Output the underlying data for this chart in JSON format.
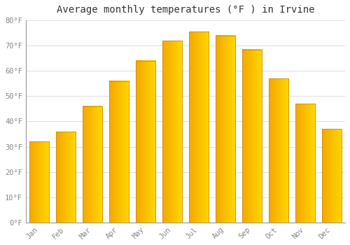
{
  "title": "Average monthly temperatures (°F ) in Irvine",
  "months": [
    "Jan",
    "Feb",
    "Mar",
    "Apr",
    "May",
    "Jun",
    "Jul",
    "Aug",
    "Sep",
    "Oct",
    "Nov",
    "Dec"
  ],
  "temperatures": [
    32,
    36,
    46,
    56,
    64,
    72,
    75.5,
    74,
    68.5,
    57,
    47,
    37
  ],
  "bar_color_left": "#F5A800",
  "bar_color_right": "#FFD000",
  "bar_outline_color": "#B8860B",
  "background_color": "#FFFFFF",
  "plot_bg_color": "#FFFFFF",
  "grid_color": "#DDDDDD",
  "text_color": "#888888",
  "title_color": "#333333",
  "ylim": [
    0,
    80
  ],
  "yticks": [
    0,
    10,
    20,
    30,
    40,
    50,
    60,
    70,
    80
  ],
  "ytick_labels": [
    "0°F",
    "10°F",
    "20°F",
    "30°F",
    "40°F",
    "50°F",
    "60°F",
    "70°F",
    "80°F"
  ],
  "title_fontsize": 10,
  "tick_fontsize": 7.5,
  "font_family": "monospace",
  "bar_width": 0.75
}
